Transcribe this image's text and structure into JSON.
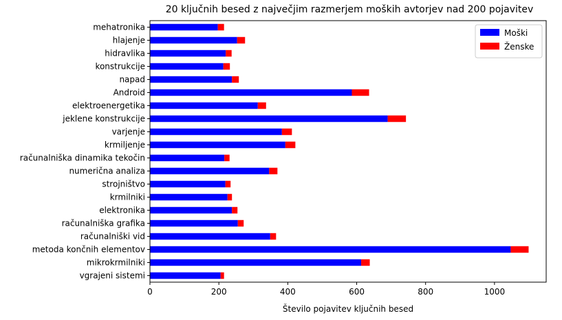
{
  "chart_data": {
    "type": "bar",
    "orientation": "horizontal",
    "stacked": true,
    "title": "20 ključnih besed z največjim razmerjem moških avtorjev nad 200 pojavitev",
    "xlabel": "Število pojavitev ključnih besed",
    "ylabel": "",
    "xlim": [
      0,
      1150
    ],
    "xticks": [
      0,
      200,
      400,
      600,
      800,
      1000
    ],
    "grid": false,
    "legend_position": "top-right",
    "categories": [
      "mehatronika",
      "hlajenje",
      "hidravlika",
      "konstrukcije",
      "napad",
      "Android",
      "elektroenergetika",
      "jeklene konstrukcije",
      "varjenje",
      "krmiljenje",
      "računalniška dinamika tekočin",
      "numerična analiza",
      "strojništvo",
      "krmilniki",
      "elektronika",
      "računalniška grafika",
      "računalniški vid",
      "metoda končnih elementov",
      "mikrokrmilniki",
      "vgrajeni sistemi"
    ],
    "series": [
      {
        "name": "Moški",
        "color": "#0000ff",
        "values": [
          197,
          253,
          220,
          213,
          238,
          586,
          313,
          690,
          383,
          393,
          216,
          346,
          219,
          225,
          238,
          255,
          349,
          1047,
          613,
          205
        ]
      },
      {
        "name": "Ženske",
        "color": "#ff0000",
        "values": [
          18,
          23,
          17,
          19,
          20,
          50,
          24,
          53,
          29,
          29,
          15,
          24,
          15,
          13,
          16,
          17,
          17,
          52,
          25,
          10
        ]
      }
    ]
  }
}
